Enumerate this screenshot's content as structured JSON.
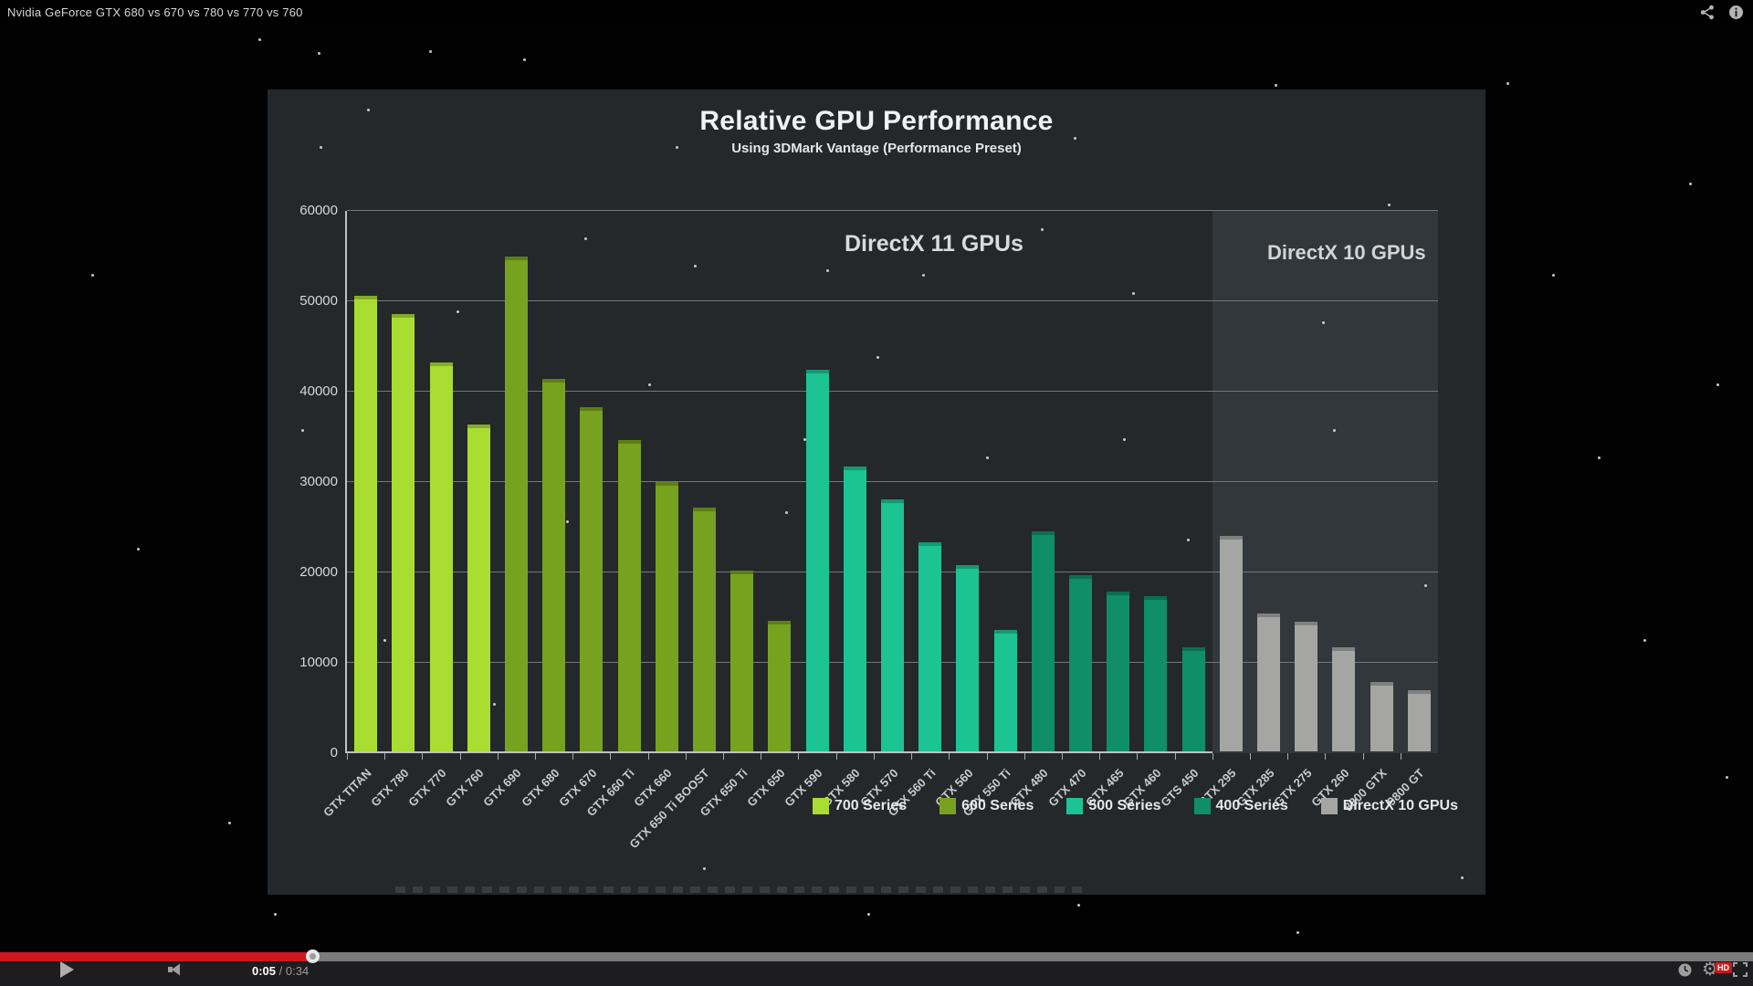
{
  "player": {
    "video_title": "Nvidia GeForce GTX 680 vs 670 vs 780 vs 770 vs 760",
    "time_current": "0:05",
    "time_rest": " / 0:34",
    "hd_badge": "HD",
    "progress_percent": 17.8,
    "icons": {
      "topbar": [
        "share-icon",
        "info-icon"
      ],
      "controls_left": [
        "play-icon",
        "volume-icon"
      ],
      "controls_right": [
        "watch-later-clock-icon",
        "settings-gear-icon",
        "fullscreen-icon"
      ],
      "gear_glyph": "⚙"
    }
  },
  "chart_data": {
    "type": "bar",
    "title": "Relative GPU Performance",
    "subtitle": "Using 3DMark Vantage (Performance Preset)",
    "ylim": [
      0,
      60000
    ],
    "yticks": [
      0,
      10000,
      20000,
      30000,
      40000,
      50000,
      60000
    ],
    "grid": true,
    "legend_position": "bottom",
    "region_labels": [
      {
        "text": "DirectX 11 GPUs"
      },
      {
        "text": "DirectX 10 GPUs"
      }
    ],
    "region_split_index": 23,
    "series": [
      {
        "name": "700 Series",
        "color": "#aadd31",
        "bars": [
          {
            "label": "GTX TITAN",
            "value": 50400
          },
          {
            "label": "GTX 780",
            "value": 48400
          },
          {
            "label": "GTX 770",
            "value": 43000
          },
          {
            "label": "GTX 760",
            "value": 36200
          }
        ]
      },
      {
        "name": "600 Series",
        "color": "#76a21f",
        "bars": [
          {
            "label": "GTX 690",
            "value": 54700
          },
          {
            "label": "GTX 680",
            "value": 41200
          },
          {
            "label": "GTX 670",
            "value": 38100
          },
          {
            "label": "GTX 660 Ti",
            "value": 34400
          },
          {
            "label": "GTX 660",
            "value": 29800
          },
          {
            "label": "GTX 650 Ti BOOST",
            "value": 27000
          },
          {
            "label": "GTX 650 Ti",
            "value": 20000
          },
          {
            "label": "GTX 650",
            "value": 14400
          }
        ]
      },
      {
        "name": "500 Series",
        "color": "#1cc393",
        "bars": [
          {
            "label": "GTX 590",
            "value": 42200
          },
          {
            "label": "GTX 580",
            "value": 31500
          },
          {
            "label": "GTX 570",
            "value": 27900
          },
          {
            "label": "GTX 560 Ti",
            "value": 23100
          },
          {
            "label": "GTX 560",
            "value": 20600
          },
          {
            "label": "GTX 550 Ti",
            "value": 13400
          }
        ]
      },
      {
        "name": "400 Series",
        "color": "#0f8e68",
        "bars": [
          {
            "label": "GTX 480",
            "value": 24300
          },
          {
            "label": "GTX 470",
            "value": 19500
          },
          {
            "label": "GTX 465",
            "value": 17700
          },
          {
            "label": "GTX 460",
            "value": 17200
          },
          {
            "label": "GTS 450",
            "value": 11500
          }
        ]
      },
      {
        "name": "DirectX 10 GPUs",
        "color": "#a5a6a3",
        "bars": [
          {
            "label": "GTX 295",
            "value": 23800
          },
          {
            "label": "GTX 285",
            "value": 15300
          },
          {
            "label": "GTX 275",
            "value": 14300
          },
          {
            "label": "GTX 260",
            "value": 11500
          },
          {
            "label": "8800 GTX",
            "value": 7700
          },
          {
            "label": "9800 GT",
            "value": 6800
          }
        ]
      }
    ]
  }
}
